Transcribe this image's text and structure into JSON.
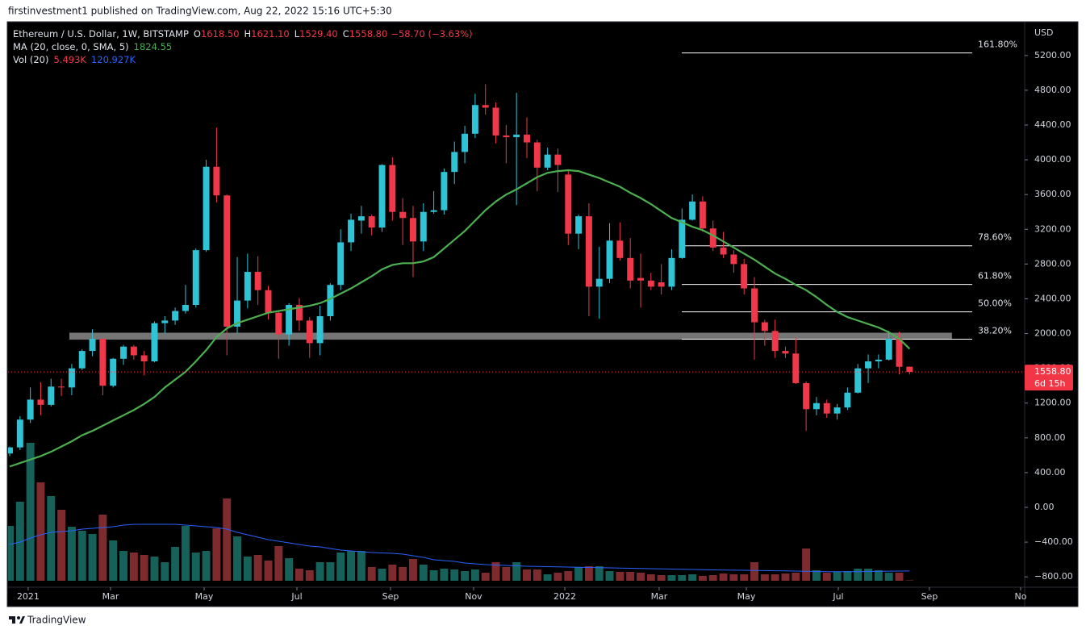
{
  "header": {
    "published": "firstinvestment1 published on TradingView.com, Aug 22, 2022 15:16 UTC+5:30"
  },
  "footer": {
    "brand": "TradingView"
  },
  "chart_data": {
    "type": "candlestick",
    "legend": {
      "symbol": "Ethereum / U.S. Dollar, 1W, BITSTAMP",
      "ohlc": [
        {
          "key": "O",
          "text": "1618.50"
        },
        {
          "key": "H",
          "text": "1621.10"
        },
        {
          "key": "L",
          "text": "1529.40"
        },
        {
          "key": "C",
          "text": "1558.80"
        }
      ],
      "change": "−58.70 (−3.63%)"
    },
    "currency": "USD",
    "up_color": "#2ec4d6",
    "down_color": "#f0384a",
    "x": [
      0,
      1,
      2,
      3,
      4,
      5,
      6,
      7,
      8,
      9,
      10,
      11,
      12,
      13,
      14,
      15,
      16,
      17,
      18,
      19,
      20,
      21,
      22,
      23,
      24,
      25,
      26,
      27,
      28,
      29,
      30,
      31,
      32,
      33,
      34,
      35,
      36,
      37,
      38,
      39,
      40,
      41,
      42,
      43,
      44,
      45,
      46,
      47,
      48,
      49,
      50,
      51,
      52,
      53,
      54,
      55,
      56,
      57,
      58,
      59,
      60,
      61,
      62,
      63,
      64,
      65,
      66,
      67,
      68,
      69,
      70,
      71,
      72,
      73,
      74,
      75,
      76,
      77,
      78,
      79,
      80,
      81,
      82,
      83,
      84,
      85,
      86,
      87
    ],
    "open": [
      620,
      690,
      1010,
      1240,
      1180,
      1390,
      1380,
      1600,
      1800,
      1940,
      1400,
      1710,
      1850,
      1750,
      1680,
      2120,
      2150,
      2260,
      2330,
      2960,
      3920,
      3590,
      2080,
      2380,
      2710,
      2500,
      2240,
      1990,
      2330,
      2150,
      1890,
      2200,
      2560,
      3050,
      3300,
      3350,
      3220,
      3940,
      3400,
      3330,
      3060,
      3400,
      3420,
      3860,
      4090,
      4300,
      4630,
      4600,
      4280,
      4260,
      4290,
      4200,
      3910,
      4060,
      3830,
      3150,
      3350,
      2540,
      2630,
      3070,
      2870,
      2640,
      2610,
      2590,
      2540,
      2870,
      3310,
      3520,
      3210,
      2990,
      2910,
      2800,
      2520,
      2130,
      2030,
      1800,
      1770,
      1430,
      1130,
      1200,
      1080,
      1150,
      1320,
      1600,
      1680,
      1700,
      1940,
      1618.5
    ],
    "high": [
      700,
      1050,
      1380,
      1440,
      1480,
      1480,
      1650,
      1820,
      2050,
      1950,
      1720,
      1870,
      1870,
      1800,
      2140,
      2200,
      2300,
      2560,
      2980,
      4000,
      4370,
      3600,
      2880,
      2920,
      2890,
      2550,
      2250,
      2350,
      2410,
      2190,
      2320,
      2580,
      3200,
      3380,
      3470,
      3370,
      3950,
      4030,
      3560,
      3470,
      3500,
      3640,
      3900,
      4210,
      4390,
      4760,
      4870,
      4660,
      4400,
      4770,
      4490,
      4230,
      4140,
      4130,
      3880,
      3370,
      3500,
      3000,
      3270,
      3280,
      3100,
      2920,
      2700,
      2800,
      2970,
      3440,
      3600,
      3580,
      3300,
      3170,
      2960,
      2860,
      2650,
      2160,
      2160,
      1850,
      1950,
      1450,
      1270,
      1240,
      1190,
      1380,
      1650,
      1760,
      1760,
      2030,
      2020,
      1621.1
    ],
    "low": [
      590,
      660,
      970,
      1060,
      1160,
      1280,
      1290,
      1580,
      1740,
      1290,
      1380,
      1640,
      1700,
      1520,
      1670,
      2000,
      2100,
      2230,
      2300,
      2940,
      3510,
      1750,
      2000,
      2290,
      2330,
      2160,
      1710,
      1860,
      2030,
      1720,
      1750,
      2150,
      2500,
      2950,
      3150,
      3130,
      3170,
      3300,
      3020,
      2650,
      2950,
      3380,
      3370,
      3720,
      3960,
      4250,
      4520,
      4190,
      3960,
      3480,
      4020,
      3640,
      3880,
      3630,
      3020,
      2970,
      2200,
      2170,
      2580,
      2840,
      2520,
      2300,
      2500,
      2450,
      2500,
      2860,
      3300,
      3170,
      2950,
      2870,
      2700,
      2450,
      1700,
      1860,
      1720,
      1720,
      1420,
      880,
      1060,
      1030,
      1010,
      1120,
      1310,
      1430,
      1600,
      1690,
      1530,
      1529.4
    ],
    "close": [
      690,
      1010,
      1240,
      1180,
      1390,
      1380,
      1600,
      1800,
      1940,
      1400,
      1710,
      1850,
      1750,
      1680,
      2120,
      2150,
      2260,
      2330,
      2960,
      3920,
      3590,
      2080,
      2380,
      2710,
      2500,
      2240,
      1990,
      2330,
      2150,
      1890,
      2200,
      2560,
      3050,
      3310,
      3350,
      3220,
      3940,
      3400,
      3330,
      3060,
      3400,
      3420,
      3860,
      4090,
      4300,
      4630,
      4600,
      4280,
      4260,
      4290,
      4200,
      3910,
      4060,
      3940,
      3150,
      3350,
      2540,
      2630,
      3070,
      2870,
      2610,
      2610,
      2540,
      2540,
      2870,
      3310,
      3520,
      3210,
      2990,
      2910,
      2800,
      2520,
      2130,
      2030,
      1800,
      1770,
      1430,
      1130,
      1200,
      1080,
      1150,
      1320,
      1600,
      1680,
      1700,
      1940,
      1617.5,
      1558.8
    ],
    "ma": {
      "label": "MA (20, close, 0, SMA, 5)",
      "color": "#4caf50",
      "values": [
        470,
        510,
        550,
        590,
        640,
        700,
        760,
        830,
        880,
        940,
        1000,
        1060,
        1120,
        1190,
        1270,
        1380,
        1470,
        1560,
        1680,
        1810,
        1960,
        2060,
        2120,
        2160,
        2200,
        2240,
        2260,
        2280,
        2300,
        2320,
        2350,
        2400,
        2460,
        2520,
        2590,
        2660,
        2740,
        2790,
        2810,
        2810,
        2830,
        2880,
        2980,
        3080,
        3180,
        3300,
        3420,
        3520,
        3600,
        3660,
        3730,
        3800,
        3850,
        3870,
        3880,
        3870,
        3830,
        3790,
        3740,
        3690,
        3620,
        3560,
        3490,
        3410,
        3330,
        3280,
        3230,
        3190,
        3130,
        3060,
        2990,
        2920,
        2850,
        2770,
        2690,
        2630,
        2560,
        2500,
        2420,
        2330,
        2250,
        2190,
        2150,
        2110,
        2070,
        2015,
        1940,
        1824.55
      ]
    },
    "volume": {
      "label": "Vol (20)",
      "value_label": "5.493K",
      "ma_label": "120.927K",
      "up_color": "#17615b",
      "down_color": "#7d2b2f",
      "ma_color": "#2962ff",
      "values": [
        680,
        980,
        1710,
        1220,
        1050,
        880,
        670,
        620,
        580,
        820,
        500,
        370,
        350,
        320,
        300,
        230,
        420,
        680,
        350,
        370,
        650,
        1020,
        550,
        300,
        320,
        250,
        430,
        280,
        150,
        130,
        230,
        230,
        350,
        370,
        370,
        170,
        150,
        200,
        170,
        270,
        200,
        130,
        150,
        140,
        120,
        140,
        100,
        230,
        170,
        230,
        140,
        140,
        80,
        100,
        120,
        170,
        180,
        180,
        120,
        110,
        110,
        100,
        80,
        70,
        70,
        70,
        80,
        60,
        70,
        90,
        80,
        80,
        230,
        80,
        80,
        90,
        100,
        400,
        130,
        100,
        110,
        120,
        150,
        150,
        130,
        100,
        100,
        5.493
      ],
      "ma": [
        450,
        480,
        530,
        570,
        600,
        610,
        620,
        640,
        650,
        660,
        670,
        690,
        700,
        700,
        700,
        700,
        700,
        690,
        680,
        670,
        660,
        640,
        600,
        570,
        540,
        510,
        490,
        470,
        450,
        430,
        420,
        400,
        380,
        370,
        360,
        350,
        345,
        340,
        330,
        310,
        290,
        260,
        250,
        240,
        220,
        210,
        200,
        195,
        190,
        185,
        180,
        178,
        175,
        172,
        170,
        168,
        165,
        162,
        160,
        158,
        155,
        152,
        150,
        148,
        145,
        142,
        140,
        138,
        135,
        133,
        131,
        130,
        128,
        126,
        124,
        122,
        120,
        118,
        115,
        113,
        112,
        112,
        113,
        115,
        117,
        119,
        120,
        120.927
      ]
    },
    "zone": {
      "low": 1930,
      "high": 2010,
      "x": [
        5.77,
        91.1
      ],
      "color": "#8a8a8a"
    },
    "fib": {
      "x": [
        64.98,
        93.06
      ],
      "color": "#ffffff",
      "levels": [
        {
          "price": 5230,
          "label": "161.80%"
        },
        {
          "price": 3010,
          "label": "78.60%"
        },
        {
          "price": 2565,
          "label": "61.80%"
        },
        {
          "price": 2250,
          "label": "50.00%"
        },
        {
          "price": 1935,
          "label": "38.20%"
        }
      ]
    },
    "last_price": {
      "label": "1558.80",
      "countdown": "6d 15h",
      "color": "#f23645"
    },
    "xlim": [
      -0.156,
      98.13
    ],
    "xticks": [
      {
        "value": 1.79,
        "label": "2021"
      },
      {
        "value": 9.75,
        "label": "Mar"
      },
      {
        "value": 18.8,
        "label": "May"
      },
      {
        "value": 27.77,
        "label": "Jul"
      },
      {
        "value": 36.82,
        "label": "Sep"
      },
      {
        "value": 44.85,
        "label": "Nov"
      },
      {
        "value": 53.67,
        "label": "2022"
      },
      {
        "value": 62.79,
        "label": "Mar"
      },
      {
        "value": 71.22,
        "label": "May"
      },
      {
        "value": 80.11,
        "label": "Jul"
      },
      {
        "value": 88.92,
        "label": "Sep"
      },
      {
        "value": 97.74,
        "label": "No"
      }
    ],
    "ylim": [
      -919,
      5579
    ],
    "yticks": [
      {
        "value": -800,
        "label": "−800.00"
      },
      {
        "value": -400,
        "label": "−400.00"
      },
      {
        "value": 0,
        "label": "0.00"
      },
      {
        "value": 400,
        "label": "400.00"
      },
      {
        "value": 800,
        "label": "800.00"
      },
      {
        "value": 1200,
        "label": "1200.00"
      },
      {
        "value": 1600,
        "label": "1600.00"
      },
      {
        "value": 2000,
        "label": "2000.00"
      },
      {
        "value": 2400,
        "label": "2400.00"
      },
      {
        "value": 2800,
        "label": "2800.00"
      },
      {
        "value": 3200,
        "label": "3200.00"
      },
      {
        "value": 3600,
        "label": "3600.00"
      },
      {
        "value": 4000,
        "label": "4000.00"
      },
      {
        "value": 4400,
        "label": "4400.00"
      },
      {
        "value": 4800,
        "label": "4800.00"
      },
      {
        "value": 5200,
        "label": "5200.00"
      }
    ],
    "grid": false
  }
}
